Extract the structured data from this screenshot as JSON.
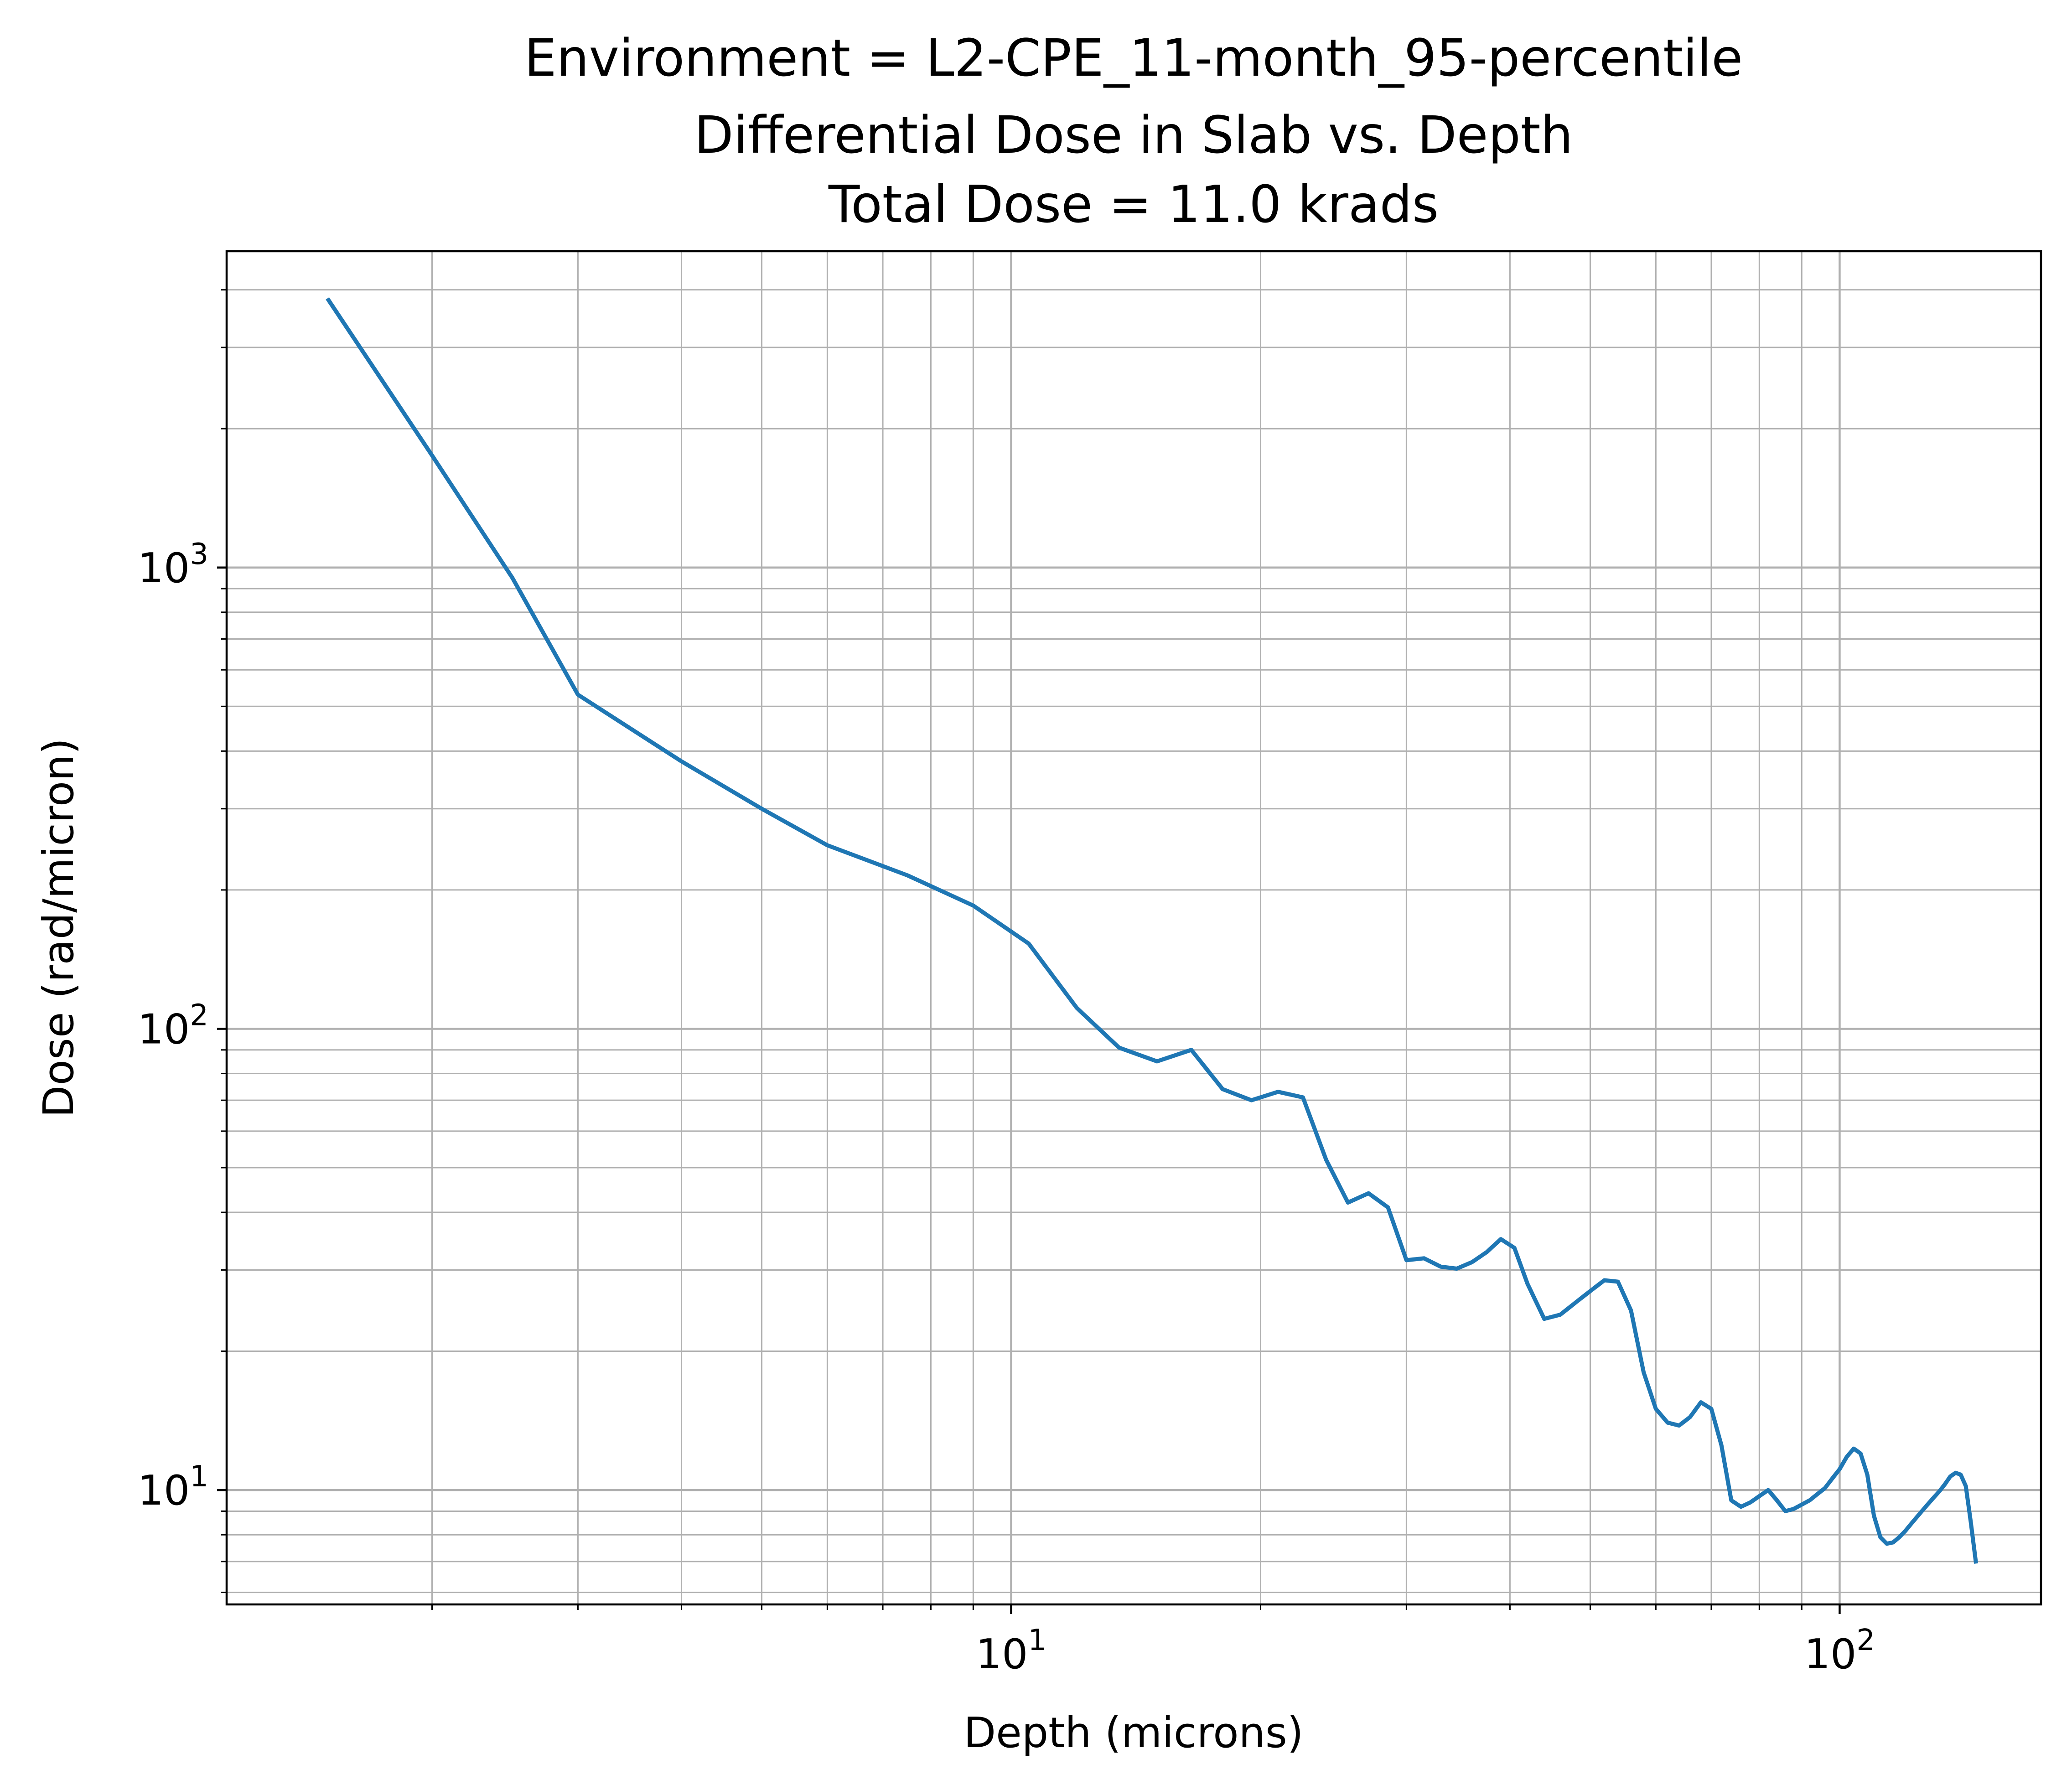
{
  "chart_data": {
    "type": "line",
    "title_lines": [
      "Environment = L2-CPE_11-month_95-percentile",
      "Differential Dose in Slab vs. Depth",
      "Total Dose = 11.0 krads"
    ],
    "xlabel": "Depth (microns)",
    "ylabel": "Dose (rad/micron)",
    "x_scale": "log",
    "y_scale": "log",
    "xlim": [
      1.13,
      175
    ],
    "ylim": [
      5.65,
      4850
    ],
    "grid": "major and minor",
    "x_ticks": [
      {
        "base": "10",
        "exp": "1",
        "value": 10
      },
      {
        "base": "10",
        "exp": "2",
        "value": 100
      }
    ],
    "y_ticks": [
      {
        "base": "10",
        "exp": "1",
        "value": 10
      },
      {
        "base": "10",
        "exp": "2",
        "value": 100
      },
      {
        "base": "10",
        "exp": "3",
        "value": 1000
      }
    ],
    "series": [
      {
        "color": "#1f77b4",
        "x": [
          1.5,
          2.0,
          2.5,
          3.0,
          4.0,
          5.0,
          6.0,
          7.5,
          9.0,
          10.5,
          12.0,
          13.5,
          15.0,
          16.5,
          18.0,
          19.5,
          21.0,
          22.5,
          24.0,
          25.5,
          27.0,
          28.5,
          30.0,
          31.5,
          33.0,
          34.5,
          36.0,
          37.5,
          39.0,
          40.5,
          42.0,
          44.0,
          46.0,
          48.0,
          50.0,
          52.0,
          54.0,
          56.0,
          58.0,
          60.0,
          62.0,
          64.0,
          66.0,
          68.0,
          70.0,
          72.0,
          74.0,
          76.0,
          78.0,
          80.0,
          82.0,
          84.0,
          86.0,
          88.0,
          90.0,
          92.0,
          94.0,
          96.0,
          98.0,
          100.0,
          102.0,
          104.0,
          106.0,
          108.0,
          110.0,
          112.0,
          114.0,
          116.0,
          118.0,
          120.0,
          122.0,
          124.0,
          126.0,
          128.0,
          130.0,
          132.0,
          134.0,
          136.0,
          138.0,
          140.0,
          142.0,
          144.0,
          146.0
        ],
        "y": [
          3800,
          1750,
          950,
          530,
          380,
          300,
          250,
          215,
          185,
          153,
          111,
          91,
          85,
          90,
          74,
          70,
          73,
          71,
          52,
          42,
          44,
          41,
          31.5,
          31.8,
          30.5,
          30.2,
          31.2,
          32.8,
          35.0,
          33.5,
          28.0,
          23.5,
          24.0,
          25.5,
          27.0,
          28.5,
          28.3,
          24.5,
          18.0,
          15.0,
          14.0,
          13.8,
          14.4,
          15.5,
          15.0,
          12.5,
          9.5,
          9.2,
          9.4,
          9.7,
          10.0,
          9.5,
          9.0,
          9.1,
          9.3,
          9.5,
          9.8,
          10.1,
          10.6,
          11.1,
          11.8,
          12.3,
          12.0,
          10.8,
          8.8,
          7.9,
          7.65,
          7.7,
          7.9,
          8.15,
          8.45,
          8.75,
          9.05,
          9.35,
          9.65,
          9.95,
          10.3,
          10.7,
          10.9,
          10.8,
          10.2,
          8.5,
          7.0
        ]
      }
    ]
  }
}
